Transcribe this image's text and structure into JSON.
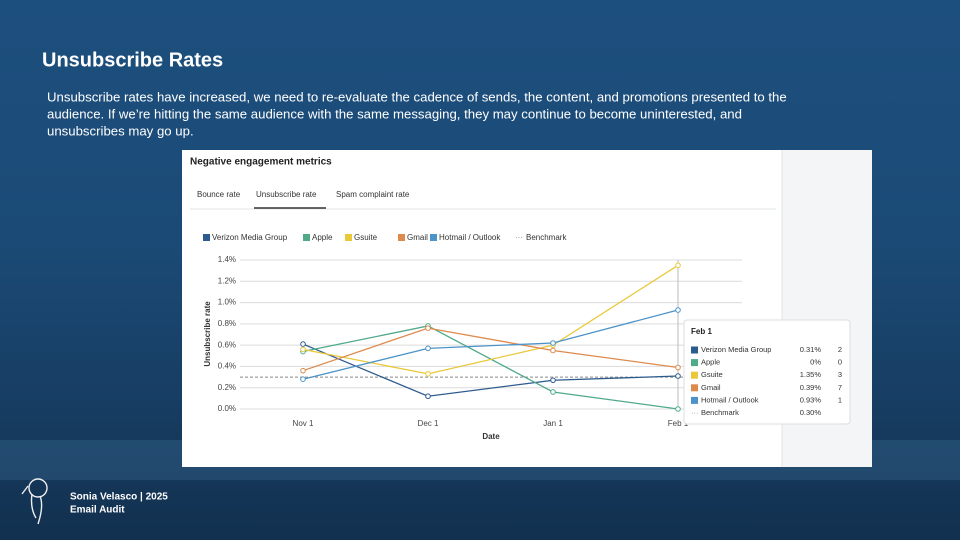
{
  "slide": {
    "title": "Unsubscribe Rates",
    "body": [
      "Unsubscribe rates have increased, we need to re-evaluate the cadence of sends, the content, and promotions presented to the",
      "audience. If we’re hitting the same audience with the same messaging, they may continue to become uninterested, and",
      "unsubscribes may go up."
    ],
    "footer": [
      "Sonia Velasco | 2025",
      "Email Audit"
    ]
  },
  "chart_data": {
    "type": "line",
    "title": "Negative engagement metrics",
    "tabs": [
      "Bounce rate",
      "Unsubscribe rate",
      "Spam complaint rate"
    ],
    "active_tab": 1,
    "x_label": "Date",
    "y_label": "Unsubscribe rate",
    "categories": [
      "Nov 1",
      "Dec 1",
      "Jan 1",
      "Feb 1"
    ],
    "series": [
      {
        "name": "Verizon Media Group",
        "color": "#2e5b8e",
        "values": [
          0.61,
          0.12,
          0.27,
          0.31
        ]
      },
      {
        "name": "Apple",
        "color": "#4faa88",
        "values": [
          0.54,
          0.78,
          0.16,
          0
        ]
      },
      {
        "name": "Gsuite",
        "color": "#e9c83a",
        "values": [
          0.56,
          0.33,
          0.6,
          1.35
        ]
      },
      {
        "name": "Gmail",
        "color": "#dd8a4c",
        "values": [
          0.36,
          0.76,
          0.55,
          0.39
        ]
      },
      {
        "name": "Hotmail / Outlook",
        "color": "#4b93c9",
        "values": [
          0.28,
          0.57,
          0.62,
          0.93
        ]
      }
    ],
    "benchmark": {
      "name": "Benchmark",
      "value": 0.3,
      "value_label": "0.30%",
      "color": "#888888"
    },
    "ylim": [
      0,
      1.4
    ],
    "yticks": [
      {
        "value": 0,
        "label": "0.0%"
      },
      {
        "value": 0.2,
        "label": "0.2%"
      },
      {
        "value": 0.4,
        "label": "0.4%"
      },
      {
        "value": 0.6,
        "label": "0.6%"
      },
      {
        "value": 0.8,
        "label": "0.8%"
      },
      {
        "value": 1.0,
        "label": "1.0%"
      },
      {
        "value": 1.2,
        "label": "1.2%"
      },
      {
        "value": 1.4,
        "label": "1.4%"
      }
    ],
    "grid": true,
    "tooltip": {
      "title": "Feb 1",
      "category_index": 3,
      "value_labels": [
        "0.31%",
        "0%",
        "1.35%",
        "0.39%",
        "0.93%"
      ],
      "counts": [
        2,
        0,
        3,
        7,
        1
      ]
    }
  }
}
